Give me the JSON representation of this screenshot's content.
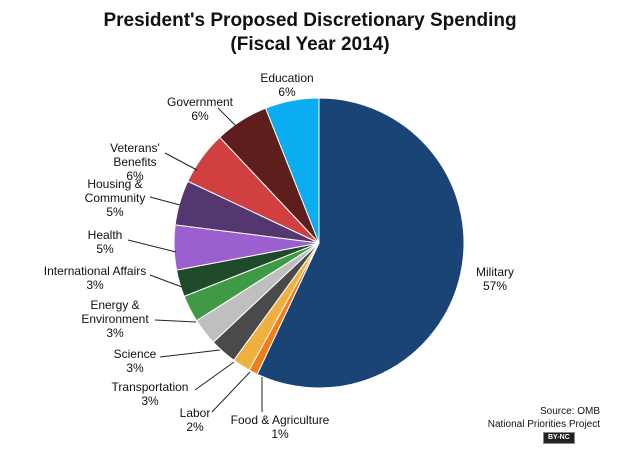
{
  "chart_data": {
    "type": "pie",
    "title": "President's Proposed Discretionary Spending",
    "subtitle": "(Fiscal Year 2014)",
    "categories": [
      "Military",
      "Food & Agriculture",
      "Labor",
      "Transportation",
      "Science",
      "Energy & Environment",
      "International Affairs",
      "Health",
      "Housing & Community",
      "Veterans' Benefits",
      "Government",
      "Education"
    ],
    "values": [
      57,
      1,
      2,
      3,
      3,
      3,
      3,
      5,
      5,
      6,
      6,
      6
    ],
    "value_labels": [
      "57%",
      "1%",
      "2%",
      "3%",
      "3%",
      "3%",
      "3%",
      "5%",
      "5%",
      "6%",
      "6%",
      "6%"
    ],
    "colors": [
      "#1a4475",
      "#f07d1a",
      "#f0b040",
      "#4a4a4a",
      "#bfbfbf",
      "#3f9a45",
      "#1e4a2a",
      "#9b5fd0",
      "#55376f",
      "#d04040",
      "#5e1e1e",
      "#0aaef0"
    ],
    "source": "Source: OMB",
    "source_org": "National Priorities Project",
    "license": "BY-NC"
  }
}
